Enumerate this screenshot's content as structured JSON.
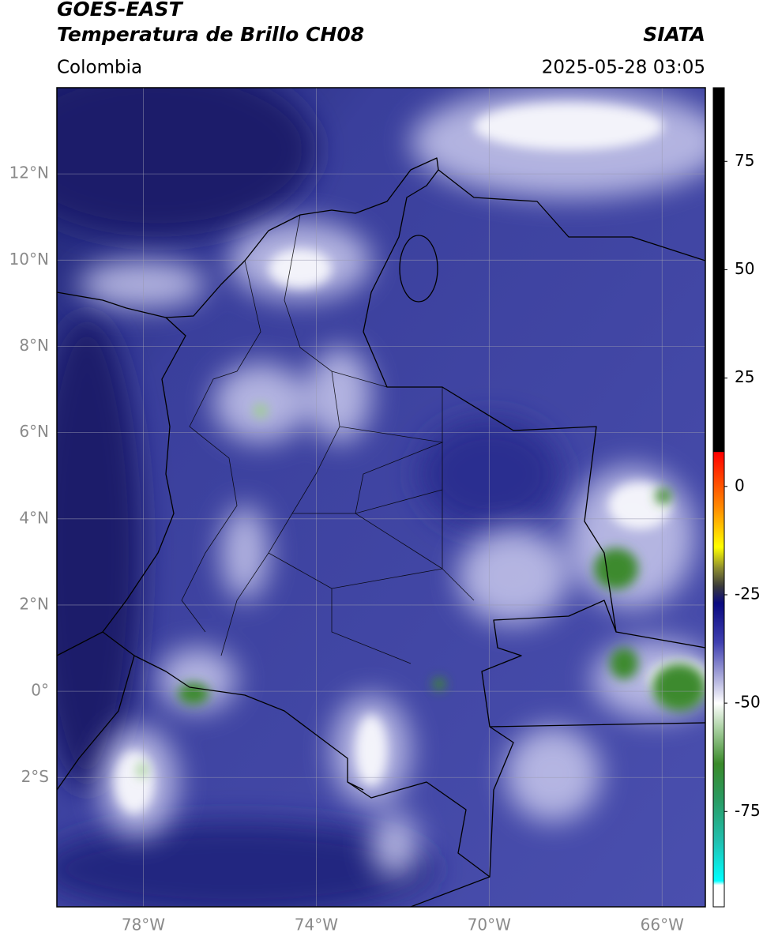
{
  "header": {
    "satellite": "GOES-EAST",
    "product": "Temperatura de Brillo CH08",
    "source": "SIATA",
    "region": "Colombia",
    "datetime": "2025-05-28 03:05"
  },
  "map": {
    "lon_range": [
      -80,
      -65
    ],
    "lat_range": [
      -5,
      14
    ],
    "lat_ticks": [
      {
        "value": 12,
        "label": "12°N"
      },
      {
        "value": 10,
        "label": "10°N"
      },
      {
        "value": 8,
        "label": "8°N"
      },
      {
        "value": 6,
        "label": "6°N"
      },
      {
        "value": 4,
        "label": "4°N"
      },
      {
        "value": 2,
        "label": "2°N"
      },
      {
        "value": 0,
        "label": "0°"
      },
      {
        "value": -2,
        "label": "2°S"
      }
    ],
    "lon_ticks": [
      {
        "value": -78,
        "label": "78°W"
      },
      {
        "value": -74,
        "label": "74°W"
      },
      {
        "value": -70,
        "label": "70°W"
      },
      {
        "value": -66,
        "label": "66°W"
      }
    ]
  },
  "colorbar": {
    "range": [
      -97,
      92
    ],
    "ticks": [
      75,
      50,
      25,
      0,
      -25,
      -50,
      -75
    ],
    "colormap": [
      {
        "value": 92,
        "color": "#000000"
      },
      {
        "value": 8,
        "color": "#000000"
      },
      {
        "value": 7.9,
        "color": "#ff0000"
      },
      {
        "value": -5,
        "color": "#ff8c00"
      },
      {
        "value": -14,
        "color": "#ffff00"
      },
      {
        "value": -19,
        "color": "#8a8a30"
      },
      {
        "value": -23,
        "color": "#3a3a3a"
      },
      {
        "value": -27,
        "color": "#0a0a80"
      },
      {
        "value": -36,
        "color": "#4040b0"
      },
      {
        "value": -45,
        "color": "#b8b8e0"
      },
      {
        "value": -50,
        "color": "#ffffff"
      },
      {
        "value": -56,
        "color": "#a8d0a0"
      },
      {
        "value": -64,
        "color": "#3a8a2a"
      },
      {
        "value": -72,
        "color": "#2a9a60"
      },
      {
        "value": -82,
        "color": "#20c0b0"
      },
      {
        "value": -91,
        "color": "#00ffff"
      },
      {
        "value": -92,
        "color": "#ffffff"
      },
      {
        "value": -97,
        "color": "#ffffff"
      }
    ]
  }
}
